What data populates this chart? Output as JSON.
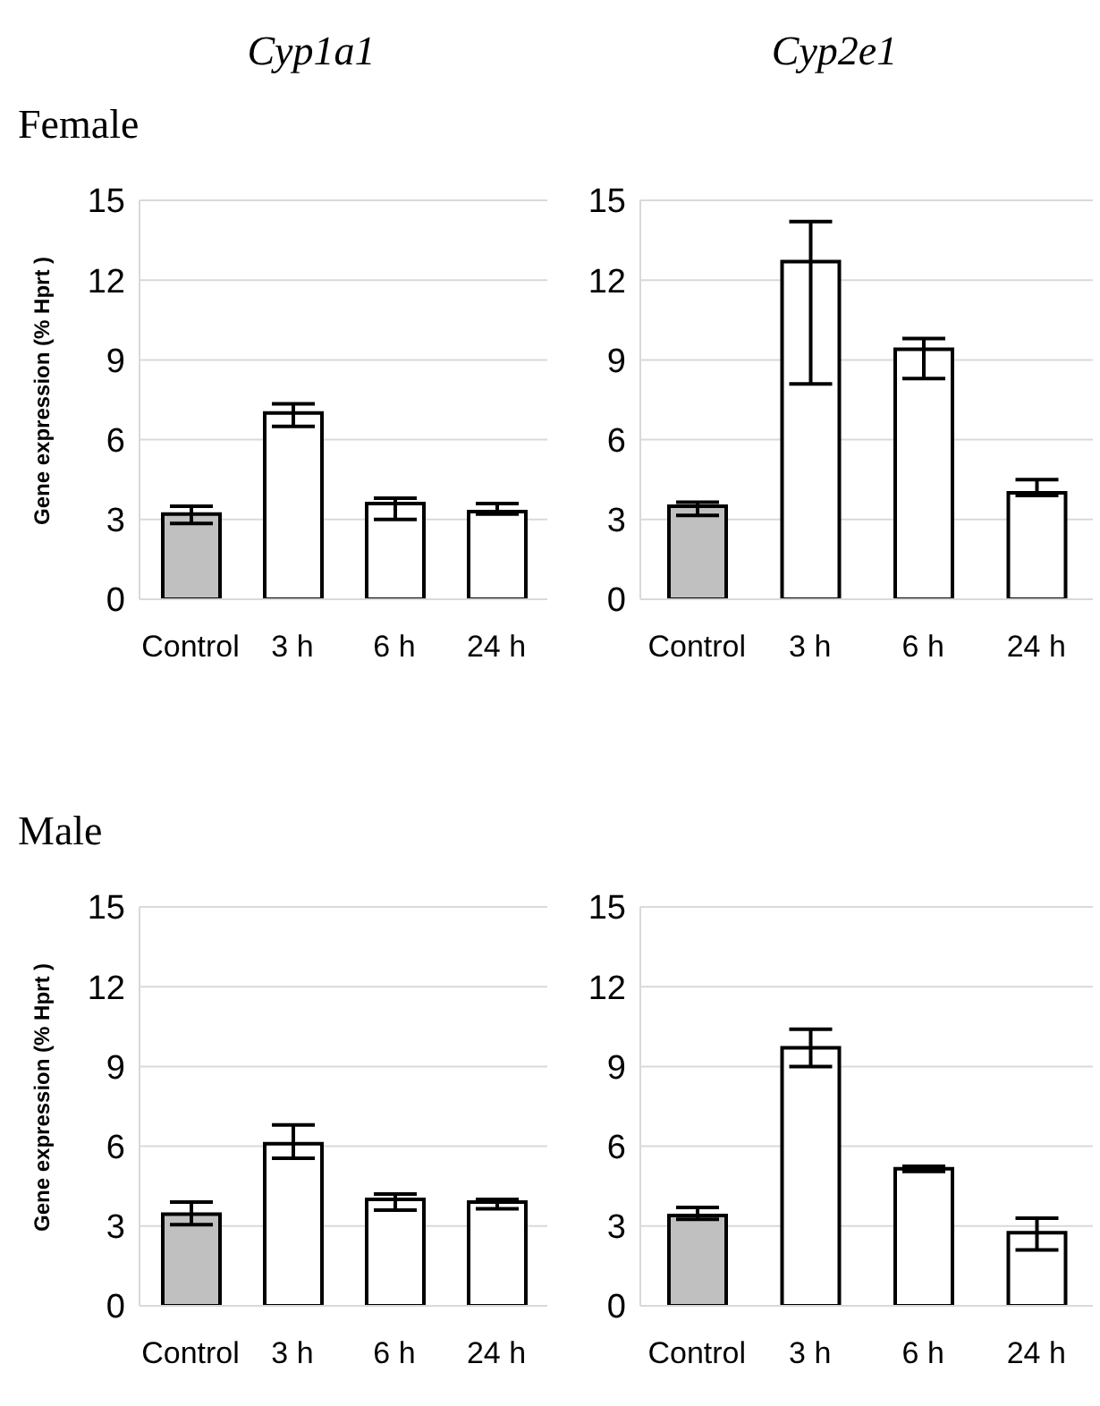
{
  "chart_data": [
    {
      "type": "bar",
      "title": "Cyp1a1",
      "subtitle": "Female",
      "ylabel": "Gene expression (% Hprt )",
      "categories": [
        "Control",
        "3 h",
        "6 h",
        "24 h"
      ],
      "values": [
        3.2,
        7.0,
        3.6,
        3.3
      ],
      "errors": [
        [
          2.85,
          3.5
        ],
        [
          6.5,
          7.35
        ],
        [
          3.0,
          3.8
        ],
        [
          3.2,
          3.6
        ]
      ],
      "colors": [
        "#c0c0c0",
        "#ffffff",
        "#ffffff",
        "#ffffff"
      ],
      "ylim": [
        0,
        15
      ],
      "yticks": [
        0,
        3,
        6,
        9,
        12,
        15
      ],
      "grid": "y"
    },
    {
      "type": "bar",
      "title": "Cyp2e1",
      "categories": [
        "Control",
        "3 h",
        "6 h",
        "24 h"
      ],
      "values": [
        3.5,
        12.7,
        9.4,
        4.0
      ],
      "errors": [
        [
          3.15,
          3.65
        ],
        [
          8.1,
          14.2
        ],
        [
          8.3,
          9.8
        ],
        [
          3.9,
          4.5
        ]
      ],
      "colors": [
        "#c0c0c0",
        "#ffffff",
        "#ffffff",
        "#ffffff"
      ],
      "ylim": [
        0,
        15
      ],
      "yticks": [
        0,
        3,
        6,
        9,
        12,
        15
      ],
      "grid": "y"
    },
    {
      "type": "bar",
      "subtitle": "Male",
      "ylabel": "Gene expression (% Hprt )",
      "categories": [
        "Control",
        "3 h",
        "6 h",
        "24 h"
      ],
      "values": [
        3.45,
        6.1,
        4.0,
        3.9
      ],
      "errors": [
        [
          3.05,
          3.9
        ],
        [
          5.55,
          6.8
        ],
        [
          3.6,
          4.2
        ],
        [
          3.65,
          4.0
        ]
      ],
      "colors": [
        "#c0c0c0",
        "#ffffff",
        "#ffffff",
        "#ffffff"
      ],
      "ylim": [
        0,
        15
      ],
      "yticks": [
        0,
        3,
        6,
        9,
        12,
        15
      ],
      "grid": "y"
    },
    {
      "type": "bar",
      "categories": [
        "Control",
        "3 h",
        "6 h",
        "24 h"
      ],
      "values": [
        3.4,
        9.7,
        5.15,
        2.75
      ],
      "errors": [
        [
          3.25,
          3.7
        ],
        [
          9.0,
          10.4
        ],
        [
          5.05,
          5.25
        ],
        [
          2.1,
          3.3
        ]
      ],
      "colors": [
        "#c0c0c0",
        "#ffffff",
        "#ffffff",
        "#ffffff"
      ],
      "ylim": [
        0,
        15
      ],
      "yticks": [
        0,
        3,
        6,
        9,
        12,
        15
      ],
      "grid": "y"
    }
  ]
}
